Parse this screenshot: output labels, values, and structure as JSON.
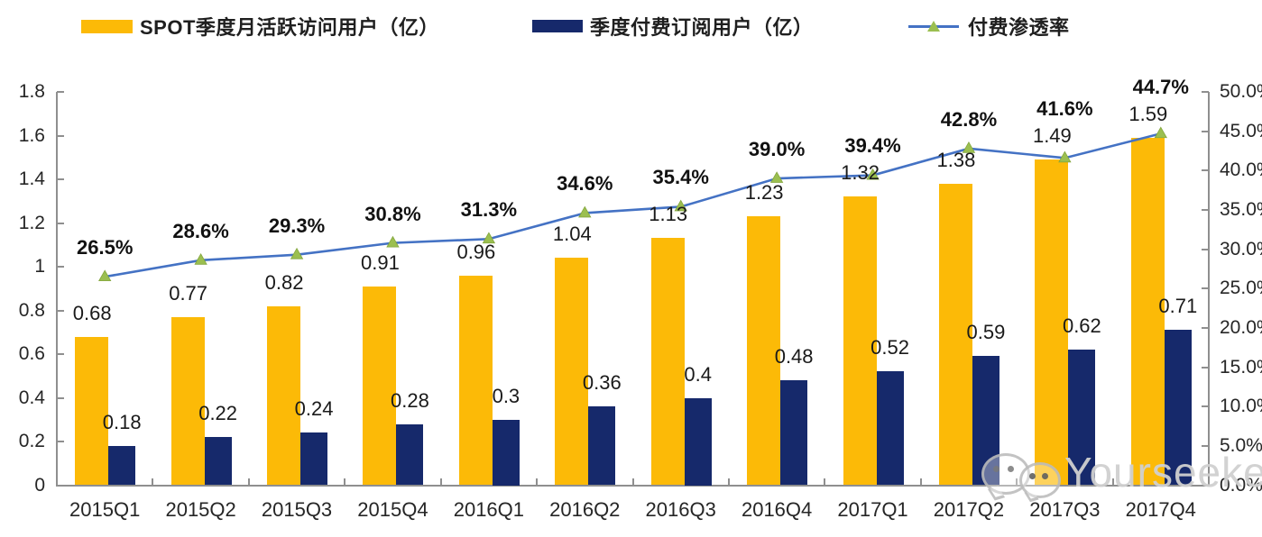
{
  "legend": {
    "items": [
      {
        "label": "SPOT季度月活跃访问用户（亿）",
        "swatch_color": "#FCBA07",
        "kind": "bar-swatch"
      },
      {
        "label": "季度付费订阅用户（亿）",
        "swatch_color": "#16296B",
        "kind": "bar-swatch"
      },
      {
        "label": "付费渗透率",
        "line_color": "#4472C4",
        "marker_color": "#9BBF50",
        "kind": "line-with-triangle-marker"
      }
    ]
  },
  "watermark": {
    "text": "Yourseeker",
    "icon": "wechat-logo-icon",
    "color": "#D0D0D0"
  },
  "colors": {
    "mau_bar": "#FCBA07",
    "subscriber_bar": "#16296B",
    "penetration_line": "#4472C4",
    "penetration_marker": "#9BBF50",
    "axis": "#8F8F8F",
    "label_text": "#1a1a1a"
  },
  "chart_data": {
    "type": "combo (bar + line)",
    "categories": [
      "2015Q1",
      "2015Q2",
      "2015Q3",
      "2015Q4",
      "2016Q1",
      "2016Q2",
      "2016Q3",
      "2016Q4",
      "2017Q1",
      "2017Q2",
      "2017Q3",
      "2017Q4"
    ],
    "series": [
      {
        "name": "SPOT季度月活跃访问用户（亿）",
        "type": "bar",
        "axis": "left",
        "color": "#FCBA07",
        "values": [
          0.68,
          0.77,
          0.82,
          0.91,
          0.96,
          1.04,
          1.13,
          1.23,
          1.32,
          1.38,
          1.49,
          1.59
        ],
        "labels": [
          "0.68",
          "0.77",
          "0.82",
          "0.91",
          "0.96",
          "1.04",
          "1.13",
          "1.23",
          "1.32",
          "1.38",
          "1.49",
          "1.59"
        ]
      },
      {
        "name": "季度付费订阅用户（亿）",
        "type": "bar",
        "axis": "left",
        "color": "#16296B",
        "values": [
          0.18,
          0.22,
          0.24,
          0.28,
          0.3,
          0.36,
          0.4,
          0.48,
          0.52,
          0.59,
          0.62,
          0.71
        ],
        "labels": [
          "0.18",
          "0.22",
          "0.24",
          "0.28",
          "0.3",
          "0.36",
          "0.4",
          "0.48",
          "0.52",
          "0.59",
          "0.62",
          "0.71"
        ]
      },
      {
        "name": "付费渗透率",
        "type": "line",
        "axis": "right",
        "color": "#4472C4",
        "marker": "triangle",
        "marker_color": "#9BBF50",
        "values_percent": [
          26.5,
          28.6,
          29.3,
          30.8,
          31.3,
          34.6,
          35.4,
          39.0,
          39.4,
          42.8,
          41.6,
          44.7
        ],
        "labels": [
          "26.5%",
          "28.6%",
          "29.3%",
          "30.8%",
          "31.3%",
          "34.6%",
          "35.4%",
          "39.0%",
          "39.4%",
          "42.8%",
          "41.6%",
          "44.7%"
        ]
      }
    ],
    "left_axis": {
      "min": 0,
      "max": 1.8,
      "step": 0.2,
      "tick_labels": [
        "1.8",
        "1.6",
        "1.4",
        "1.2",
        "1",
        "0.8",
        "0.6",
        "0.4",
        "0.2",
        "0"
      ]
    },
    "right_axis": {
      "min": 0,
      "max": 50,
      "step": 5,
      "unit": "%",
      "tick_labels": [
        "50.0%",
        "45.0%",
        "40.0%",
        "35.0%",
        "30.0%",
        "25.0%",
        "20.0%",
        "15.0%",
        "10.0%",
        "5.0%",
        "0.0%"
      ]
    },
    "grid": "off",
    "legend_position": "top",
    "data_labels": "on"
  }
}
